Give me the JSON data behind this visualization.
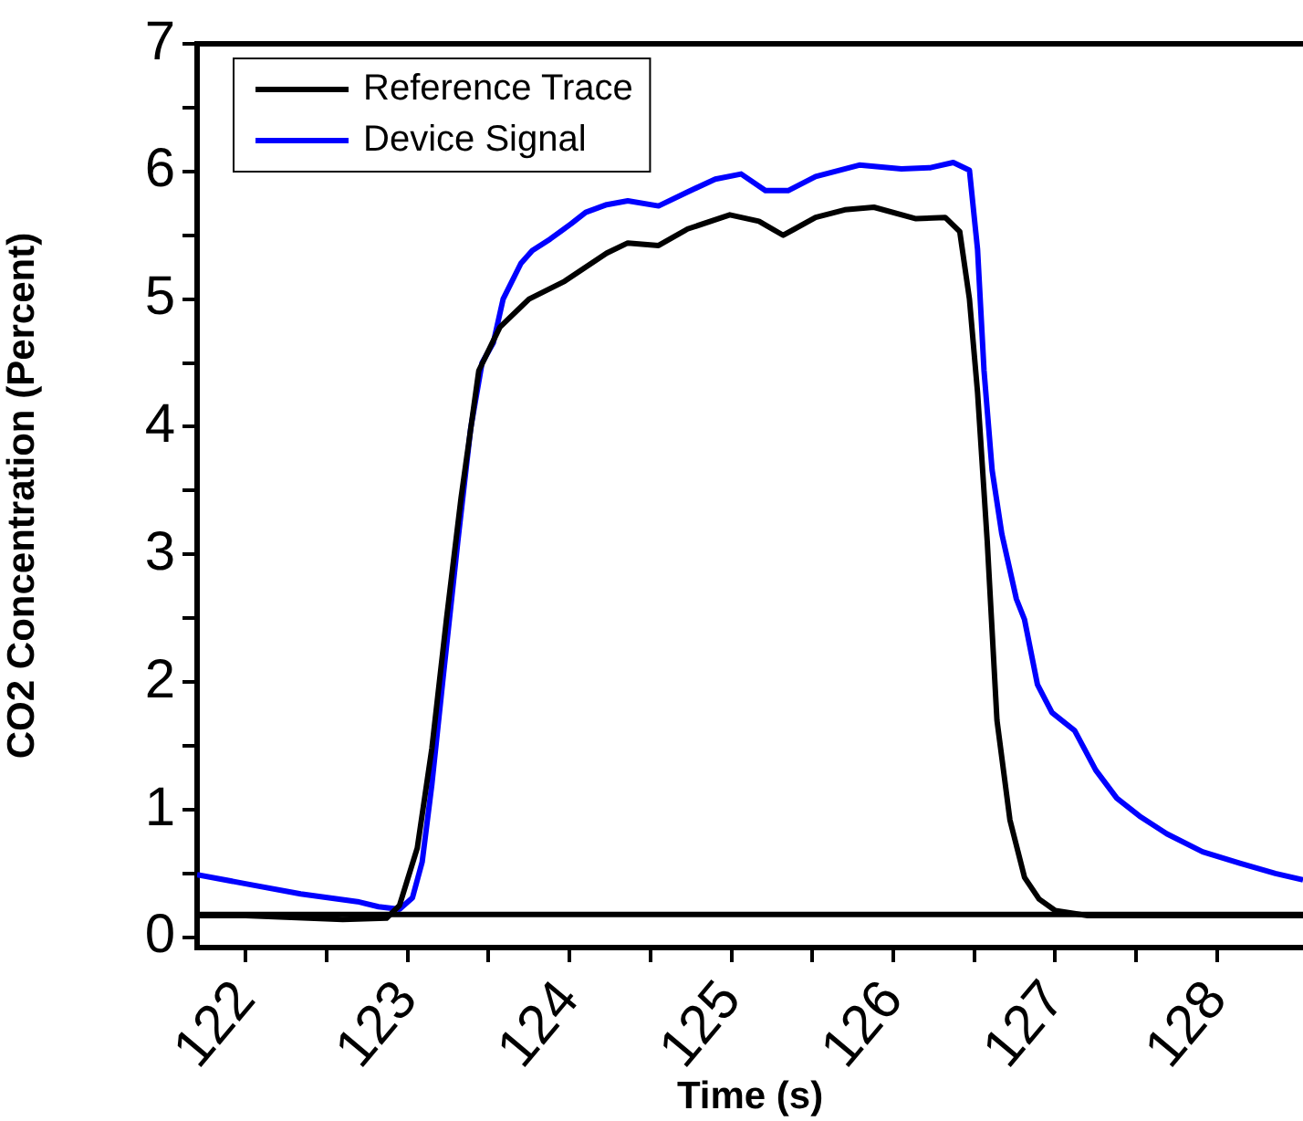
{
  "chart_data": {
    "type": "line",
    "xlabel": "Time (s)",
    "ylabel": "CO2 Concentration (Percent)",
    "xlim": [
      121.7,
      128.53
    ],
    "ylim": [
      -0.08,
      7
    ],
    "xticks": [
      122,
      {
        "value": 122.5,
        "label": null
      },
      123,
      {
        "value": 123.5,
        "label": null
      },
      124,
      {
        "value": 124.5,
        "label": null
      },
      125,
      {
        "value": 125.5,
        "label": null
      },
      126,
      {
        "value": 126.5,
        "label": null
      },
      127,
      {
        "value": 127.5,
        "label": null
      },
      128
    ],
    "yticks": [
      0,
      {
        "value": 0.5,
        "label": null
      },
      1,
      {
        "value": 1.5,
        "label": null
      },
      2,
      {
        "value": 2.5,
        "label": null
      },
      3,
      {
        "value": 3.5,
        "label": null
      },
      4,
      {
        "value": 4.5,
        "label": null
      },
      5,
      {
        "value": 5.5,
        "label": null
      },
      6,
      {
        "value": 6.5,
        "label": null
      },
      7
    ],
    "grid": false,
    "legend": "top left",
    "marker": "none",
    "line_style": "solid",
    "ref_lines": [
      {
        "axis": "y",
        "value": 0.18,
        "color": "#000000"
      }
    ],
    "series": [
      {
        "name": "Reference Trace",
        "color": "#000000",
        "x": [
          121.7,
          122.0,
          122.6,
          122.87,
          122.95,
          123.06,
          123.15,
          123.24,
          123.33,
          123.44,
          123.57,
          123.75,
          123.97,
          124.23,
          124.36,
          124.55,
          124.73,
          124.99,
          125.17,
          125.32,
          125.52,
          125.7,
          125.88,
          126.14,
          126.32,
          126.41,
          126.47,
          126.52,
          126.58,
          126.64,
          126.72,
          126.81,
          126.9,
          127.0,
          127.2,
          127.56,
          128.0,
          128.53
        ],
        "values": [
          0.17,
          0.17,
          0.14,
          0.15,
          0.25,
          0.7,
          1.48,
          2.49,
          3.44,
          4.44,
          4.78,
          5.0,
          5.14,
          5.36,
          5.44,
          5.42,
          5.55,
          5.66,
          5.61,
          5.5,
          5.64,
          5.7,
          5.72,
          5.63,
          5.64,
          5.53,
          5.0,
          4.27,
          3.1,
          1.7,
          0.92,
          0.47,
          0.3,
          0.21,
          0.17,
          0.17,
          0.17,
          0.17
        ]
      },
      {
        "name": "Device Signal",
        "color": "#0000ff",
        "x": [
          121.7,
          122.0,
          122.34,
          122.69,
          122.82,
          122.95,
          123.03,
          123.09,
          123.15,
          123.22,
          123.31,
          123.39,
          123.46,
          123.53,
          123.59,
          123.7,
          123.77,
          123.88,
          124.01,
          124.1,
          124.23,
          124.36,
          124.55,
          124.73,
          124.9,
          125.06,
          125.21,
          125.35,
          125.52,
          125.79,
          126.05,
          126.23,
          126.37,
          126.47,
          126.52,
          126.56,
          126.61,
          126.67,
          126.76,
          126.81,
          126.89,
          126.98,
          127.12,
          127.25,
          127.38,
          127.52,
          127.69,
          127.91,
          128.14,
          128.36,
          128.53
        ],
        "values": [
          0.49,
          0.42,
          0.34,
          0.28,
          0.24,
          0.22,
          0.31,
          0.59,
          1.2,
          2.04,
          3.1,
          3.99,
          4.5,
          4.66,
          5.0,
          5.28,
          5.38,
          5.47,
          5.59,
          5.68,
          5.74,
          5.77,
          5.73,
          5.84,
          5.94,
          5.98,
          5.85,
          5.85,
          5.96,
          6.05,
          6.02,
          6.03,
          6.07,
          6.01,
          5.39,
          4.44,
          3.66,
          3.16,
          2.65,
          2.49,
          1.98,
          1.76,
          1.62,
          1.31,
          1.09,
          0.95,
          0.81,
          0.67,
          0.58,
          0.5,
          0.45
        ]
      }
    ]
  }
}
